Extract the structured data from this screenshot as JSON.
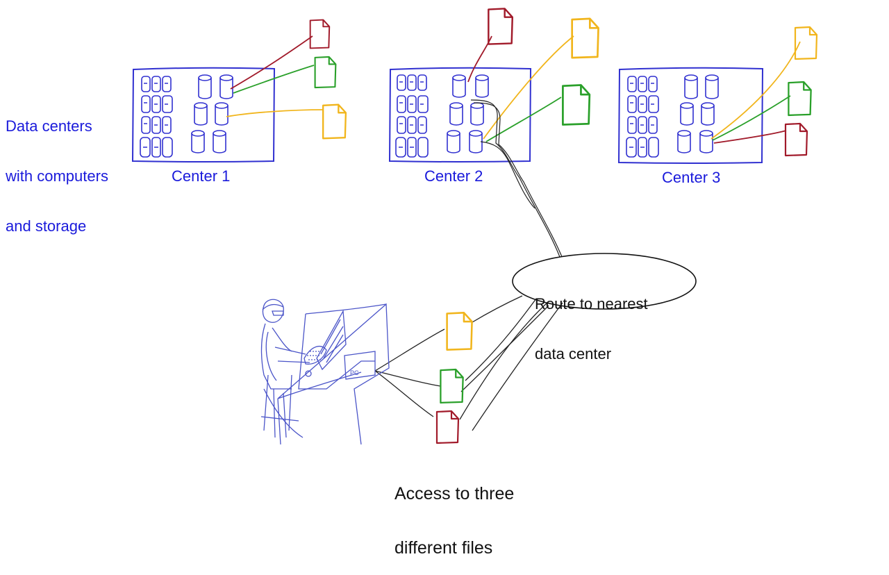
{
  "labels": {
    "side_note": [
      "Data centers",
      "with computers",
      "and storage"
    ],
    "centers": [
      "Center 1",
      "Center 2",
      "Center 3"
    ],
    "route_bubble": [
      "Route to nearest",
      "data center"
    ],
    "access_note": [
      "Access to three",
      "different files"
    ],
    "desk_mark": "PC"
  },
  "colors": {
    "center_outline": "#3030d0",
    "label_blue": "#1a1adb",
    "file_red": "#a11a2a",
    "file_green": "#2aa02a",
    "file_yellow": "#f1b51c",
    "connector": "#222222",
    "person_sketch": "#4a54c8"
  },
  "icons": [
    "server-rack-icon",
    "storage-cylinder-icon",
    "document-icon",
    "person-at-desk-icon",
    "monitor-icon"
  ]
}
